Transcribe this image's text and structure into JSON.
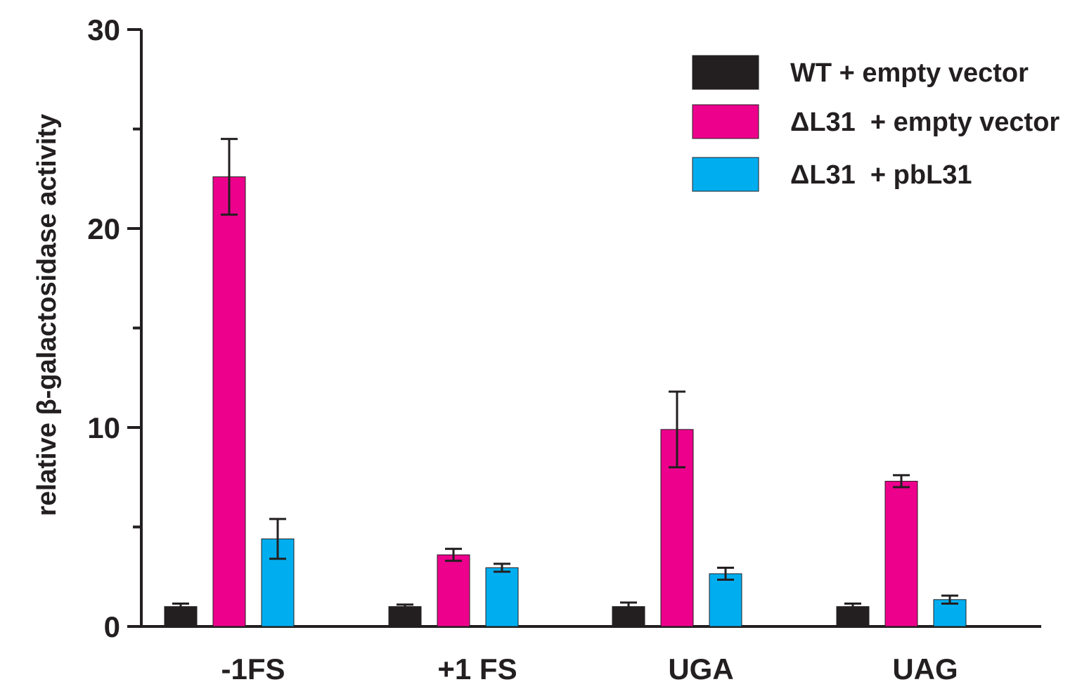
{
  "chart_data": {
    "type": "bar",
    "title": "",
    "xlabel": "",
    "ylabel": "relative β-galactosidase activity",
    "ylim": [
      0,
      30
    ],
    "yticks": [
      0,
      10,
      20,
      30
    ],
    "ytick_labels": [
      "0",
      "10",
      "20",
      "30"
    ],
    "minor_yticks": [
      5,
      15,
      25
    ],
    "grid": false,
    "legend_position": "top-right",
    "categories": [
      "-1FS",
      "+1 FS",
      "UGA",
      "UAG"
    ],
    "series": [
      {
        "name": "WT + empty vector",
        "color": "#231f20",
        "values": [
          1.0,
          1.0,
          1.0,
          1.0
        ],
        "errors": [
          0.15,
          0.1,
          0.2,
          0.15
        ]
      },
      {
        "name": "ΔL31  + empty vector",
        "color": "#ec008c",
        "values": [
          22.6,
          3.6,
          9.9,
          7.3
        ],
        "errors": [
          1.9,
          0.3,
          1.9,
          0.3
        ]
      },
      {
        "name": "ΔL31  + pbL31",
        "color": "#00aeef",
        "values": [
          4.4,
          2.95,
          2.65,
          1.35
        ],
        "errors": [
          1.0,
          0.2,
          0.3,
          0.2
        ]
      }
    ]
  }
}
